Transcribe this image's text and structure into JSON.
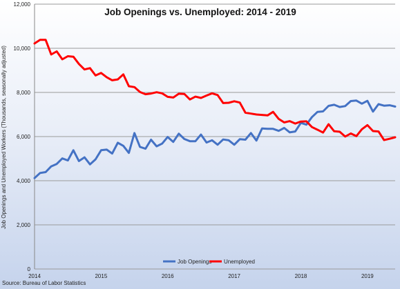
{
  "chart_data": {
    "type": "line",
    "title": "Job Openings vs. Unemployed:  2014 - 2019",
    "xlabel": "",
    "ylabel": "Job Openings and Unemployed Workers (Thousands, seasonally adjusted)",
    "ylim": [
      0,
      12000
    ],
    "y_ticks": [
      {
        "value": 0,
        "label": "0"
      },
      {
        "value": 2000,
        "label": "2,000"
      },
      {
        "value": 4000,
        "label": "4,000"
      },
      {
        "value": 6000,
        "label": "6,000"
      },
      {
        "value": 8000,
        "label": "8,000"
      },
      {
        "value": 10000,
        "label": "10,000"
      },
      {
        "value": 12000,
        "label": "12,000"
      }
    ],
    "x_ticks": [
      {
        "index": 0,
        "label": "2014"
      },
      {
        "index": 12,
        "label": "2015"
      },
      {
        "index": 24,
        "label": "2016"
      },
      {
        "index": 36,
        "label": "2017"
      },
      {
        "index": 48,
        "label": "2018"
      },
      {
        "index": 60,
        "label": "2019"
      }
    ],
    "grid": true,
    "legend_position": "bottom",
    "source": "Source: Bureau of Labor Statistics",
    "series": [
      {
        "name": "Job Openings",
        "color": "#4472c4",
        "values": [
          4120,
          4350,
          4390,
          4650,
          4760,
          5010,
          4920,
          5380,
          4890,
          5060,
          4740,
          4970,
          5380,
          5410,
          5230,
          5720,
          5580,
          5260,
          6160,
          5530,
          5450,
          5860,
          5560,
          5680,
          5980,
          5760,
          6130,
          5890,
          5790,
          5790,
          6090,
          5730,
          5830,
          5630,
          5870,
          5830,
          5630,
          5880,
          5860,
          6160,
          5820,
          6370,
          6350,
          6350,
          6260,
          6390,
          6190,
          6230,
          6620,
          6540,
          6880,
          7120,
          7140,
          7390,
          7440,
          7340,
          7380,
          7610,
          7630,
          7490,
          7620,
          7130,
          7470,
          7400,
          7420,
          7360
        ]
      },
      {
        "name": "Unemployed",
        "color": "#ff0000",
        "values": [
          10220,
          10380,
          10380,
          9720,
          9860,
          9500,
          9640,
          9620,
          9290,
          9040,
          9100,
          8770,
          8880,
          8690,
          8550,
          8590,
          8820,
          8280,
          8240,
          8020,
          7920,
          7950,
          8010,
          7960,
          7800,
          7770,
          7940,
          7930,
          7680,
          7810,
          7750,
          7860,
          7960,
          7880,
          7520,
          7530,
          7600,
          7540,
          7080,
          7040,
          7000,
          6980,
          6960,
          7120,
          6800,
          6640,
          6700,
          6590,
          6680,
          6690,
          6430,
          6310,
          6180,
          6560,
          6240,
          6220,
          6000,
          6140,
          6020,
          6330,
          6520,
          6250,
          6230,
          5840,
          5900,
          5970
        ]
      }
    ]
  }
}
